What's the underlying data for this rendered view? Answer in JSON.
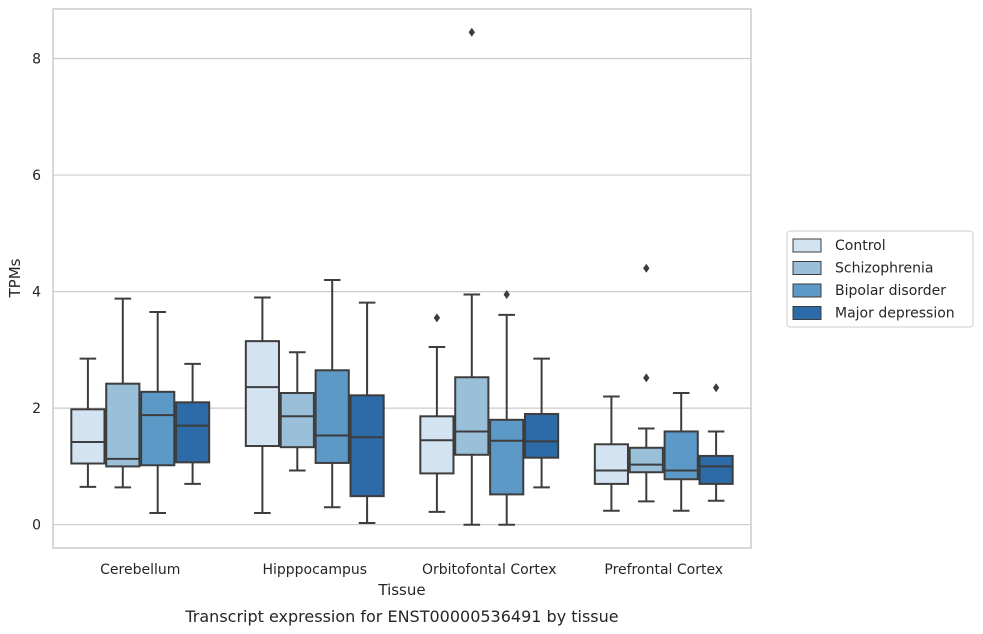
{
  "chart_data": {
    "type": "boxplot",
    "title": "Transcript expression for ENST00000536491 by tissue",
    "xlabel": "Tissue",
    "ylabel": "TPMs",
    "ylim": [
      -0.4,
      8.85
    ],
    "yticks": [
      0,
      2,
      4,
      6,
      8
    ],
    "grid": true,
    "legend_position": "right",
    "categories": [
      "Cerebellum",
      "Hipppocampus",
      "Orbitofontal Cortex",
      "Prefrontal Cortex"
    ],
    "series": [
      {
        "name": "Control",
        "color": "#d4e3f2",
        "boxes": [
          {
            "min": 0.65,
            "q1": 1.05,
            "median": 1.42,
            "q3": 1.98,
            "max": 2.85,
            "outliers": []
          },
          {
            "min": 0.2,
            "q1": 1.35,
            "median": 2.36,
            "q3": 3.15,
            "max": 3.9,
            "outliers": []
          },
          {
            "min": 0.22,
            "q1": 0.88,
            "median": 1.45,
            "q3": 1.86,
            "max": 3.05,
            "outliers": [
              3.55
            ]
          },
          {
            "min": 0.24,
            "q1": 0.7,
            "median": 0.93,
            "q3": 1.38,
            "max": 2.2,
            "outliers": []
          }
        ]
      },
      {
        "name": "Schizophrenia",
        "color": "#9ac0d9",
        "boxes": [
          {
            "min": 0.64,
            "q1": 1.0,
            "median": 1.13,
            "q3": 2.42,
            "max": 3.88,
            "outliers": []
          },
          {
            "min": 0.93,
            "q1": 1.33,
            "median": 1.86,
            "q3": 2.26,
            "max": 2.96,
            "outliers": []
          },
          {
            "min": 0.0,
            "q1": 1.2,
            "median": 1.6,
            "q3": 2.53,
            "max": 3.95,
            "outliers": [
              8.45
            ]
          },
          {
            "min": 0.4,
            "q1": 0.9,
            "median": 1.03,
            "q3": 1.32,
            "max": 1.65,
            "outliers": [
              4.4,
              2.52
            ]
          }
        ]
      },
      {
        "name": "Bipolar disorder",
        "color": "#5c99c6",
        "boxes": [
          {
            "min": 0.2,
            "q1": 1.02,
            "median": 1.88,
            "q3": 2.28,
            "max": 3.65,
            "outliers": []
          },
          {
            "min": 0.3,
            "q1": 1.06,
            "median": 1.53,
            "q3": 2.65,
            "max": 4.2,
            "outliers": []
          },
          {
            "min": 0.0,
            "q1": 0.52,
            "median": 1.44,
            "q3": 1.8,
            "max": 3.6,
            "outliers": [
              3.95
            ]
          },
          {
            "min": 0.24,
            "q1": 0.78,
            "median": 0.93,
            "q3": 1.6,
            "max": 2.26,
            "outliers": []
          }
        ]
      },
      {
        "name": "Major depression",
        "color": "#2c6aa8",
        "boxes": [
          {
            "min": 0.7,
            "q1": 1.07,
            "median": 1.7,
            "q3": 2.1,
            "max": 2.76,
            "outliers": []
          },
          {
            "min": 0.03,
            "q1": 0.49,
            "median": 1.5,
            "q3": 2.22,
            "max": 3.81,
            "outliers": []
          },
          {
            "min": 0.64,
            "q1": 1.15,
            "median": 1.43,
            "q3": 1.9,
            "max": 2.85,
            "outliers": []
          },
          {
            "min": 0.41,
            "q1": 0.7,
            "median": 1.0,
            "q3": 1.18,
            "max": 1.6,
            "outliers": [
              2.35
            ]
          }
        ]
      }
    ]
  }
}
